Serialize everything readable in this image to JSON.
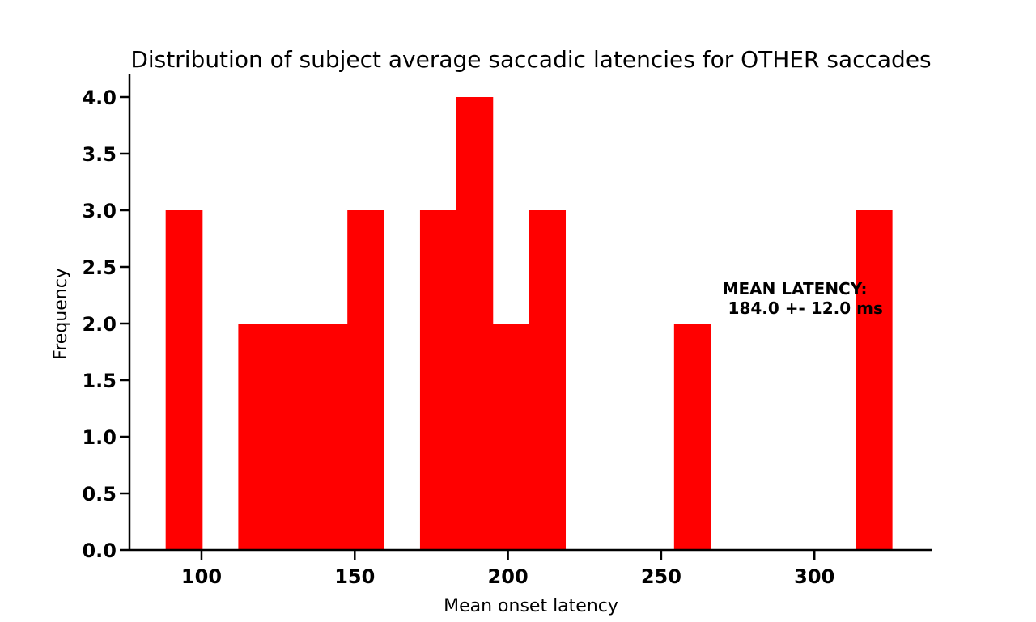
{
  "chart_data": {
    "type": "bar",
    "title": "Distribution of subject average saccadic latencies for OTHER saccades",
    "xlabel": "Mean onset latency",
    "ylabel": "Frequency",
    "xlim": [
      76.5,
      338.5
    ],
    "ylim": [
      0,
      4.2
    ],
    "xticks": [
      100,
      150,
      200,
      250,
      300
    ],
    "xtick_labels": [
      "100",
      "150",
      "200",
      "250",
      "300"
    ],
    "yticks": [
      0,
      0.5,
      1.0,
      1.5,
      2.0,
      2.5,
      3.0,
      3.5,
      4.0
    ],
    "ytick_labels": [
      "0.0",
      "0.5",
      "1.0",
      "1.5",
      "2.0",
      "2.5",
      "3.0",
      "3.5",
      "4.0"
    ],
    "bin_edges": [
      88.3,
      100.2,
      112.0,
      123.9,
      135.7,
      147.6,
      159.4,
      171.3,
      183.1,
      195.0,
      206.8,
      218.7,
      230.5,
      242.4,
      254.2,
      266.1,
      277.9,
      289.8,
      301.6,
      313.5,
      325.3
    ],
    "values": [
      3,
      0,
      2,
      2,
      2,
      3,
      0,
      3,
      4,
      2,
      3,
      0,
      0,
      0,
      2,
      0,
      0,
      0,
      0,
      3
    ],
    "annotation": {
      "line1": "MEAN LATENCY:",
      "line2": " 184.0 +- 12.0 ms",
      "x": 270,
      "y": 2.2
    },
    "bar_color": "#ff0000",
    "grid": false,
    "legend": "none"
  }
}
